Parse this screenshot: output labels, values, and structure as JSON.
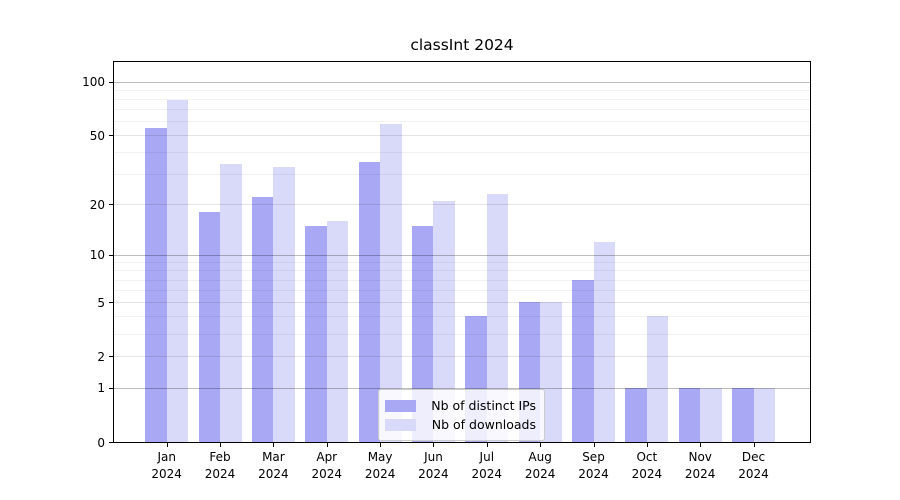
{
  "title": "classInt 2024",
  "colors": {
    "distinct_ips_bar": "#a8a8f4",
    "downloads_bar": "#d9d9f9",
    "spine": "#000000",
    "legend_border": "#cccccc"
  },
  "chart_data": {
    "type": "bar",
    "title": "classInt 2024",
    "categories": [
      "Jan",
      "Feb",
      "Mar",
      "Apr",
      "May",
      "Jun",
      "Jul",
      "Aug",
      "Sep",
      "Oct",
      "Nov",
      "Dec"
    ],
    "year_label": "2024",
    "series": [
      {
        "name": "Nb of distinct IPs",
        "color": "#a8a8f4",
        "values": [
          55,
          18,
          22,
          15,
          35,
          15,
          4,
          5,
          7,
          1,
          1,
          1
        ]
      },
      {
        "name": "Nb of downloads",
        "color": "#d9d9f9",
        "values": [
          79,
          34,
          33,
          16,
          58,
          21,
          23,
          5,
          12,
          4,
          1,
          1
        ]
      }
    ],
    "xlabel": "",
    "ylabel": "",
    "yscale": "log1p",
    "ylim": [
      0,
      129
    ],
    "yticks": [
      0,
      1,
      2,
      5,
      10,
      20,
      50,
      100
    ],
    "ytick_labels": [
      "0",
      "1",
      "2",
      "5",
      "10",
      "20",
      "50",
      "100"
    ],
    "ygrid_primary": [
      1,
      10,
      100
    ],
    "ygrid_secondary": [
      2,
      5,
      20,
      50
    ],
    "ygrid_minor": [
      3,
      4,
      6,
      7,
      8,
      9,
      30,
      40,
      60,
      70,
      80,
      90
    ],
    "grid": true,
    "legend_position": "lower center"
  }
}
